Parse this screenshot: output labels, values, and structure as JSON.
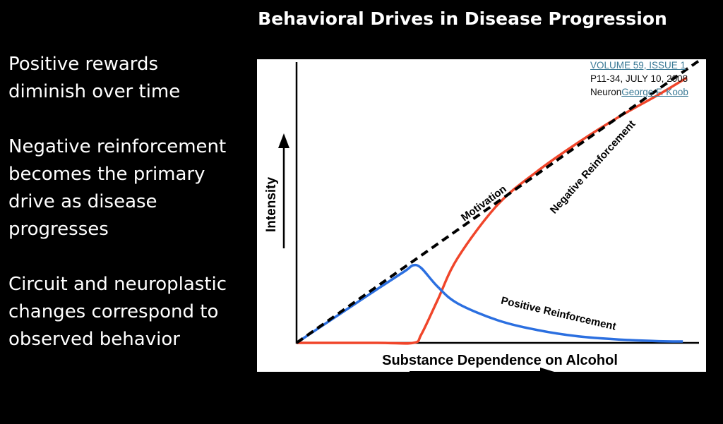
{
  "title": "Behavioral Drives in Disease Progression",
  "bullets": [
    "Positive rewards diminish over time",
    "Negative reinforcement becomes the primary drive as disease progresses",
    "Circuit and neuroplastic changes correspond to observed behavior"
  ],
  "citation": {
    "link1": "VOLUME 59, ISSUE 1",
    "text": ", P11-34, JULY 10, 2008 Neuron",
    "link2": "George F. Koob"
  },
  "colors": {
    "motivation": "#000000",
    "negative": "#f0452a",
    "positive": "#2b6fe0"
  },
  "chart_data": {
    "type": "line",
    "xlabel": "Substance Dependence on Alcohol",
    "ylabel": "Intensity",
    "xlim": [
      0,
      100
    ],
    "ylim": [
      0,
      100
    ],
    "grid": false,
    "series": [
      {
        "name": "Motivation",
        "style": "dashed",
        "x": [
          0,
          100
        ],
        "y": [
          0,
          100
        ]
      },
      {
        "name": "Positive Reinforcement",
        "x": [
          0,
          10,
          20,
          27,
          29,
          31,
          35,
          40,
          50,
          60,
          70,
          80,
          90,
          96
        ],
        "y": [
          0,
          9.5,
          19,
          25.5,
          27.5,
          26.5,
          20,
          14,
          8,
          4.5,
          2.3,
          1.2,
          0.6,
          0.5
        ]
      },
      {
        "name": "Negative Reinforcement",
        "x": [
          0,
          20,
          29,
          31,
          35,
          40,
          50,
          60,
          70,
          80,
          90,
          97
        ],
        "y": [
          0,
          0,
          0,
          3,
          15,
          30,
          49,
          61,
          71,
          80,
          88,
          94
        ]
      }
    ],
    "annotations": [
      "Motivation",
      "Negative Reinforcement",
      "Positive Reinforcement"
    ]
  }
}
